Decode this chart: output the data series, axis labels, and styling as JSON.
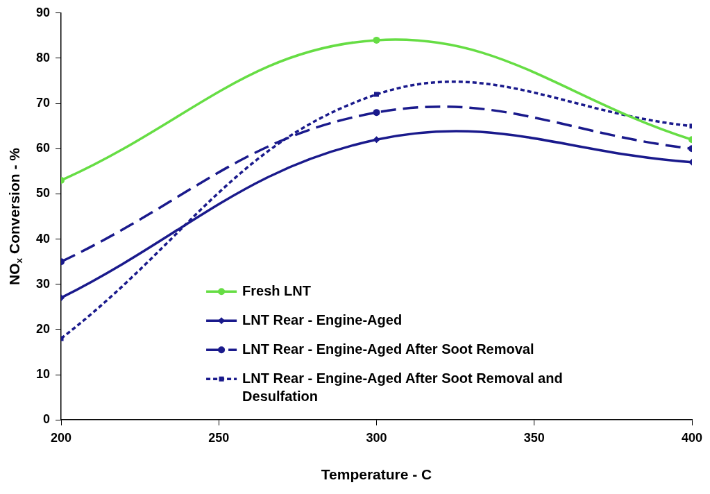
{
  "chart_data": {
    "type": "line",
    "xlabel": "Temperature - C",
    "ylabel": "NO$_{x}$ Conversion - %",
    "x": [
      200,
      300,
      400
    ],
    "xlim": [
      200,
      400
    ],
    "xticks": [
      200,
      250,
      300,
      350,
      400
    ],
    "ylim": [
      0,
      90
    ],
    "yticks": [
      0,
      10,
      20,
      30,
      40,
      50,
      60,
      70,
      80,
      90
    ],
    "grid": false,
    "legend": "bottom right",
    "series": [
      {
        "name": "Fresh LNT",
        "color": "#66dd44",
        "values": [
          53,
          84,
          62
        ],
        "marker": "circle",
        "line_style": "solid"
      },
      {
        "name": "LNT Rear - Engine-Aged",
        "color": "#1a1a8c",
        "values": [
          27,
          62,
          57
        ],
        "marker": "diamond",
        "line_style": "solid"
      },
      {
        "name": "LNT Rear - Engine-Aged After Soot Removal",
        "color": "#1a1a8c",
        "values": [
          35,
          68,
          60
        ],
        "marker": "circle",
        "line_style": "dashed"
      },
      {
        "name": "LNT Rear - Engine-Aged After Soot Removal and Desulfation",
        "color": "#1a1a8c",
        "values": [
          18,
          72,
          65
        ],
        "marker": "square",
        "line_style": "dotted"
      }
    ]
  }
}
